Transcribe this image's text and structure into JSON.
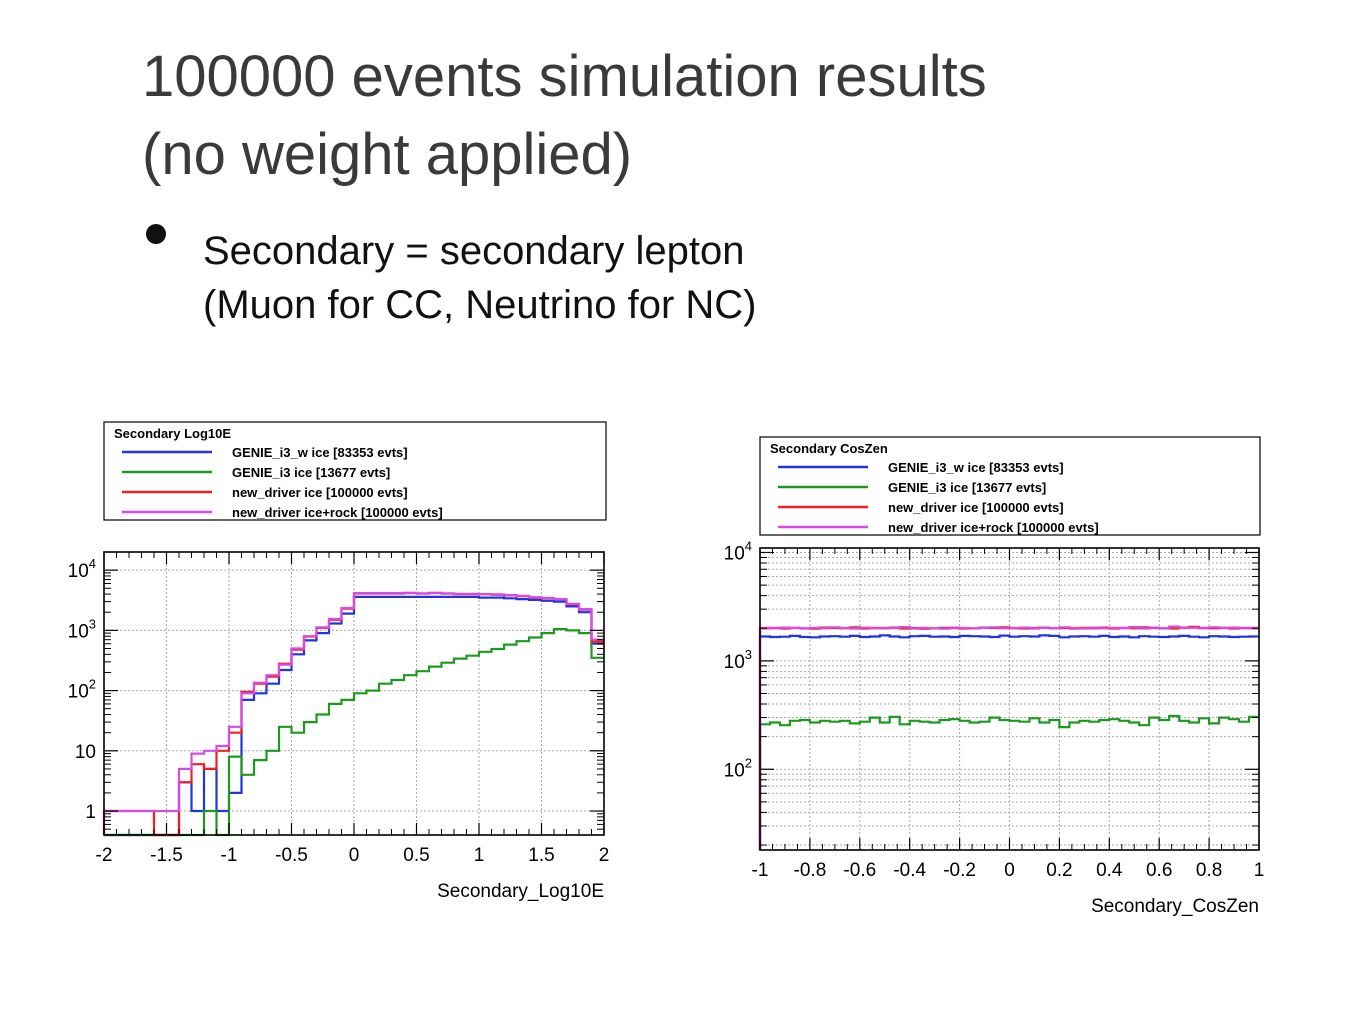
{
  "slide": {
    "title_line1": "100000 events simulation results",
    "title_line2": "(no weight applied)",
    "bullet_line1": "Secondary = secondary lepton",
    "bullet_line2": "(Muon for CC, Neutrino for NC)"
  },
  "colors": {
    "blue": "#1f35e0",
    "green": "#1d9a1d",
    "red": "#f02020",
    "magenta": "#d84ae6",
    "grid": "#a9a9a9",
    "axis": "#000000"
  },
  "chart_data": [
    {
      "type": "line",
      "title": "Secondary Log10E",
      "xlabel": "Secondary_Log10E",
      "ylabel": "",
      "xlim": [
        -2,
        2
      ],
      "ylim": [
        0.4,
        20000
      ],
      "log_y": true,
      "grid": true,
      "legend_placement": "top",
      "x_ticks": [
        "-2",
        "-1.5",
        "-1",
        "-0.5",
        "0",
        "0.5",
        "1",
        "1.5",
        "2"
      ],
      "y_ticks": [
        {
          "value": 1,
          "label": "1"
        },
        {
          "value": 10,
          "label": "10"
        },
        {
          "value": 100,
          "label": "10",
          "exp": "2"
        },
        {
          "value": 1000,
          "label": "10",
          "exp": "3"
        },
        {
          "value": 10000,
          "label": "10",
          "exp": "4"
        }
      ],
      "bin_edges_start": -2,
      "bin_width": 0.1,
      "series": [
        {
          "name": "GENIE_i3_w ice [83353 evts]",
          "color": "#1f35e0",
          "values": [
            0,
            0,
            0,
            0,
            0,
            0,
            3,
            1,
            5,
            1,
            2,
            70,
            90,
            130,
            220,
            400,
            680,
            900,
            1300,
            1900,
            3600,
            3600,
            3600,
            3600,
            3600,
            3600,
            3600,
            3600,
            3600,
            3600,
            3500,
            3500,
            3400,
            3300,
            3200,
            3100,
            3000,
            2500,
            2000,
            600
          ]
        },
        {
          "name": "GENIE_i3 ice [13677 evts]",
          "color": "#1d9a1d",
          "values": [
            0,
            0,
            0,
            0,
            0,
            0,
            0,
            0,
            1,
            0,
            8,
            4,
            7,
            10,
            25,
            20,
            30,
            40,
            60,
            70,
            90,
            100,
            130,
            150,
            180,
            210,
            250,
            290,
            340,
            380,
            440,
            490,
            580,
            660,
            760,
            900,
            1050,
            1000,
            900,
            350
          ]
        },
        {
          "name": "new_driver ice [100000 evts]",
          "color": "#f02020",
          "values": [
            1,
            1,
            1,
            1,
            0,
            0,
            3,
            6,
            5,
            10,
            20,
            95,
            130,
            170,
            280,
            480,
            790,
            1100,
            1500,
            2300,
            4100,
            4100,
            4100,
            4100,
            4200,
            4100,
            4200,
            4100,
            4000,
            4000,
            4000,
            3900,
            3800,
            3700,
            3500,
            3400,
            3300,
            2700,
            2200,
            650
          ]
        },
        {
          "name": "new_driver ice+rock [100000 evts]",
          "color": "#d84ae6",
          "values": [
            1,
            1,
            1,
            1,
            1,
            1,
            5,
            9,
            10,
            12,
            25,
            90,
            135,
            180,
            270,
            500,
            800,
            1120,
            1550,
            2350,
            4150,
            4150,
            4150,
            4150,
            4150,
            4100,
            4150,
            4100,
            4050,
            4050,
            4000,
            3950,
            3850,
            3750,
            3550,
            3450,
            3300,
            2750,
            2250,
            700
          ]
        }
      ]
    },
    {
      "type": "line",
      "title": "Secondary CosZen",
      "xlabel": "Secondary_CosZen",
      "ylabel": "",
      "xlim": [
        -1,
        1
      ],
      "ylim": [
        18,
        11000
      ],
      "log_y": true,
      "grid": true,
      "legend_placement": "top",
      "x_ticks": [
        "-1",
        "-0.8",
        "-0.6",
        "-0.4",
        "-0.2",
        "0",
        "0.2",
        "0.4",
        "0.6",
        "0.8",
        "1"
      ],
      "y_ticks": [
        {
          "value": 100,
          "label": "10",
          "exp": "2"
        },
        {
          "value": 1000,
          "label": "10",
          "exp": "3"
        },
        {
          "value": 10000,
          "label": "10",
          "exp": "4"
        }
      ],
      "bin_edges_start": -1,
      "bin_width": 0.04,
      "series": [
        {
          "name": "GENIE_i3_w ice [83353 evts]",
          "color": "#1f35e0",
          "values": [
            1680,
            1660,
            1670,
            1700,
            1660,
            1650,
            1680,
            1690,
            1670,
            1700,
            1660,
            1680,
            1720,
            1680,
            1650,
            1690,
            1700,
            1670,
            1680,
            1660,
            1700,
            1690,
            1680,
            1660,
            1710,
            1670,
            1690,
            1680,
            1720,
            1700,
            1650,
            1680,
            1690,
            1670,
            1700,
            1660,
            1680,
            1650,
            1690,
            1670,
            1660,
            1680,
            1700,
            1670,
            1650,
            1690,
            1680,
            1660,
            1670,
            1680
          ]
        },
        {
          "name": "GENIE_i3 ice [13677 evts]",
          "color": "#1d9a1d",
          "values": [
            260,
            270,
            255,
            280,
            285,
            270,
            280,
            275,
            280,
            265,
            275,
            300,
            270,
            305,
            260,
            280,
            275,
            270,
            285,
            290,
            280,
            270,
            275,
            300,
            285,
            280,
            275,
            295,
            270,
            285,
            245,
            270,
            280,
            275,
            285,
            290,
            280,
            270,
            255,
            300,
            285,
            310,
            280,
            270,
            295,
            265,
            300,
            290,
            275,
            305
          ]
        },
        {
          "name": "new_driver ice [100000 evts]",
          "color": "#f02020",
          "values": [
            2000,
            2010,
            1990,
            2020,
            2000,
            1980,
            2030,
            2010,
            2000,
            2040,
            1990,
            2010,
            2000,
            2030,
            1990,
            2010,
            1980,
            2000,
            2020,
            2010,
            1990,
            2000,
            2030,
            2010,
            2040,
            2000,
            1990,
            2010,
            2030,
            2000,
            2010,
            1990,
            2020,
            2000,
            2030,
            1990,
            2010,
            2000,
            2040,
            2010,
            2000,
            1990,
            2030,
            2060,
            2010,
            2000,
            2020,
            1990,
            2010,
            2000
          ]
        },
        {
          "name": "new_driver ice+rock [100000 evts]",
          "color": "#d84ae6",
          "values": [
            2020,
            2000,
            2030,
            2010,
            1990,
            2020,
            2000,
            2040,
            2010,
            1990,
            2030,
            2000,
            2020,
            2010,
            2050,
            1990,
            2020,
            2000,
            1980,
            2030,
            2010,
            2000,
            2020,
            2040,
            2000,
            2010,
            2030,
            1990,
            2020,
            2000,
            2040,
            2010,
            1990,
            2030,
            2000,
            2020,
            2010,
            2050,
            1990,
            2030,
            2000,
            2070,
            2010,
            2020,
            2000,
            2040,
            2010,
            2030,
            2000,
            2020
          ]
        }
      ]
    }
  ]
}
